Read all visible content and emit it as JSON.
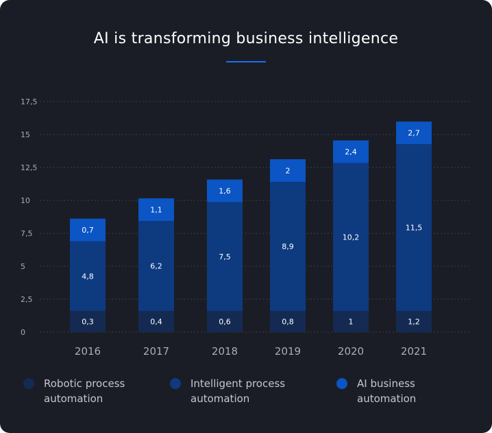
{
  "chart_data": {
    "type": "bar",
    "stacked": true,
    "title": "AI is transforming business intelligence",
    "categories": [
      "2016",
      "2017",
      "2018",
      "2019",
      "2020",
      "2021"
    ],
    "series": [
      {
        "name": "Robotic process automation",
        "color": "#152a52",
        "values": [
          0.3,
          0.4,
          0.6,
          0.8,
          1,
          1.2
        ],
        "labels": [
          "0,3",
          "0,4",
          "0,6",
          "0,8",
          "1",
          "1,2"
        ]
      },
      {
        "name": "Intelligent process automation",
        "color": "#0e3a80",
        "values": [
          4.8,
          6.2,
          7.5,
          8.9,
          10.2,
          11.5
        ],
        "labels": [
          "4,8",
          "6,2",
          "7,5",
          "8,9",
          "10,2",
          "11,5"
        ]
      },
      {
        "name": "AI business automation",
        "color": "#0b55c4",
        "values": [
          0.7,
          1.1,
          1.6,
          2,
          2.4,
          2.7
        ],
        "labels": [
          "0,7",
          "1,1",
          "1,6",
          "2",
          "2,4",
          "2,7"
        ]
      }
    ],
    "yticks": [
      "0",
      "2,5",
      "5",
      "7,5",
      "10",
      "12,5",
      "15",
      "17,5"
    ],
    "ylim": [
      0,
      17.5
    ],
    "grid": true,
    "legend": "bottom"
  }
}
